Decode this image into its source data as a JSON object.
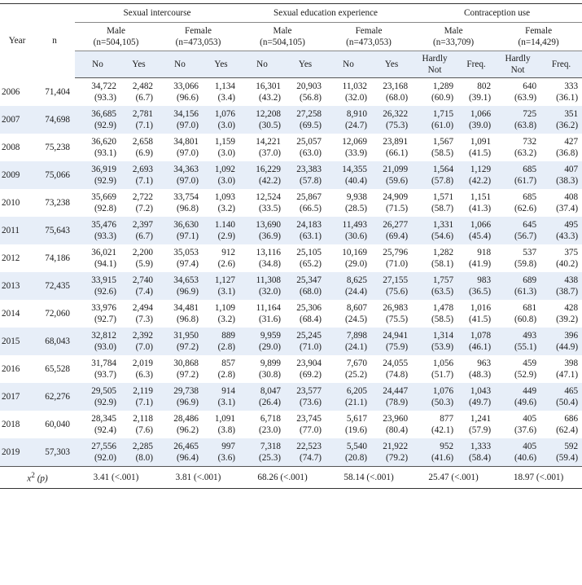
{
  "header": {
    "year": "Year",
    "n": "n",
    "groups": [
      "Sexual intercourse",
      "Sexual education experience",
      "Contraception use"
    ],
    "subgroups": [
      {
        "label": "Male",
        "n": "(n=504,105)"
      },
      {
        "label": "Female",
        "n": "(n=473,053)"
      },
      {
        "label": "Male",
        "n": "(n=504,105)"
      },
      {
        "label": "Female",
        "n": "(n=473,053)"
      },
      {
        "label": "Male",
        "n": "(n=33,709)"
      },
      {
        "label": "Female",
        "n": "(n=14,429)"
      }
    ],
    "cols": [
      {
        "a": "No",
        "b": "Yes"
      },
      {
        "a": "No",
        "b": "Yes"
      },
      {
        "a": "No",
        "b": "Yes"
      },
      {
        "a": "No",
        "b": "Yes"
      },
      {
        "a_line1": "Hardly",
        "a_line2": "Not",
        "b": "Freq."
      },
      {
        "a_line1": "Hardly",
        "a_line2": "Not",
        "b": "Freq."
      }
    ]
  },
  "rows": [
    {
      "year": "2006",
      "n": "71,404",
      "cells": [
        [
          "34,722",
          "(93.3)"
        ],
        [
          "2,482",
          "(6.7)"
        ],
        [
          "33,066",
          "(96.6)"
        ],
        [
          "1,134",
          "(3.4)"
        ],
        [
          "16,301",
          "(43.2)"
        ],
        [
          "20,903",
          "(56.8)"
        ],
        [
          "11,032",
          "(32.0)"
        ],
        [
          "23,168",
          "(68.0)"
        ],
        [
          "1,289",
          "(60.9)"
        ],
        [
          "802",
          "(39.1)"
        ],
        [
          "640",
          "(63.9)"
        ],
        [
          "333",
          "(36.1)"
        ]
      ]
    },
    {
      "year": "2007",
      "n": "74,698",
      "cells": [
        [
          "36,685",
          "(92.9)"
        ],
        [
          "2,781",
          "(7.1)"
        ],
        [
          "34,156",
          "(97.0)"
        ],
        [
          "1,076",
          "(3.0)"
        ],
        [
          "12,208",
          "(30.5)"
        ],
        [
          "27,258",
          "(69.5)"
        ],
        [
          "8,910",
          "(24.7)"
        ],
        [
          "26,322",
          "(75.3)"
        ],
        [
          "1,715",
          "(61.0)"
        ],
        [
          "1,066",
          "(39.0)"
        ],
        [
          "725",
          "(63.8)"
        ],
        [
          "351",
          "(36.2)"
        ]
      ]
    },
    {
      "year": "2008",
      "n": "75,238",
      "cells": [
        [
          "36,620",
          "(93.1)"
        ],
        [
          "2,658",
          "(6.9)"
        ],
        [
          "34,801",
          "(97.0)"
        ],
        [
          "1,159",
          "(3.0)"
        ],
        [
          "14,221",
          "(37.0)"
        ],
        [
          "25,057",
          "(63.0)"
        ],
        [
          "12,069",
          "(33.9)"
        ],
        [
          "23,891",
          "(66.1)"
        ],
        [
          "1,567",
          "(58.5)"
        ],
        [
          "1,091",
          "(41.5)"
        ],
        [
          "732",
          "(63.2)"
        ],
        [
          "427",
          "(36.8)"
        ]
      ]
    },
    {
      "year": "2009",
      "n": "75,066",
      "cells": [
        [
          "36,919",
          "(92.9)"
        ],
        [
          "2,693",
          "(7.1)"
        ],
        [
          "34,363",
          "(97.0)"
        ],
        [
          "1,092",
          "(3.0)"
        ],
        [
          "16,229",
          "(42.2)"
        ],
        [
          "23,383",
          "(57.8)"
        ],
        [
          "14,355",
          "(40.4)"
        ],
        [
          "21,099",
          "(59.6)"
        ],
        [
          "1,564",
          "(57.8)"
        ],
        [
          "1,129",
          "(42.2)"
        ],
        [
          "685",
          "(61.7)"
        ],
        [
          "407",
          "(38.3)"
        ]
      ]
    },
    {
      "year": "2010",
      "n": "73,238",
      "cells": [
        [
          "35,669",
          "(92.8)"
        ],
        [
          "2,722",
          "(7.2)"
        ],
        [
          "33,754",
          "(96.8)"
        ],
        [
          "1,093",
          "(3.2)"
        ],
        [
          "12,524",
          "(33.5)"
        ],
        [
          "25,867",
          "(66.5)"
        ],
        [
          "9,938",
          "(28.5)"
        ],
        [
          "24,909",
          "(71.5)"
        ],
        [
          "1,571",
          "(58.7)"
        ],
        [
          "1,151",
          "(41.3)"
        ],
        [
          "685",
          "(62.6)"
        ],
        [
          "408",
          "(37.4)"
        ]
      ]
    },
    {
      "year": "2011",
      "n": "75,643",
      "cells": [
        [
          "35,476",
          "(93.3)"
        ],
        [
          "2,397",
          "(6.7)"
        ],
        [
          "36,630",
          "(97.1)"
        ],
        [
          "1.140",
          "(2.9)"
        ],
        [
          "13,690",
          "(36.9)"
        ],
        [
          "24,183",
          "(63.1)"
        ],
        [
          "11,493",
          "(30.6)"
        ],
        [
          "26,277",
          "(69.4)"
        ],
        [
          "1,331",
          "(54.6)"
        ],
        [
          "1,066",
          "(45.4)"
        ],
        [
          "645",
          "(56.7)"
        ],
        [
          "495",
          "(43.3)"
        ]
      ]
    },
    {
      "year": "2012",
      "n": "74,186",
      "cells": [
        [
          "36,021",
          "(94.1)"
        ],
        [
          "2,200",
          "(5.9)"
        ],
        [
          "35,053",
          "(97.4)"
        ],
        [
          "912",
          "(2.6)"
        ],
        [
          "13,116",
          "(34.8)"
        ],
        [
          "25,105",
          "(65.2)"
        ],
        [
          "10,169",
          "(29.0)"
        ],
        [
          "25,796",
          "(71.0)"
        ],
        [
          "1,282",
          "(58.1)"
        ],
        [
          "918",
          "(41.9)"
        ],
        [
          "537",
          "(59.8)"
        ],
        [
          "375",
          "(40.2)"
        ]
      ]
    },
    {
      "year": "2013",
      "n": "72,435",
      "cells": [
        [
          "33,915",
          "(92.6)"
        ],
        [
          "2,740",
          "(7.4)"
        ],
        [
          "34,653",
          "(96.9)"
        ],
        [
          "1,127",
          "(3.1)"
        ],
        [
          "11,308",
          "(32.0)"
        ],
        [
          "25,347",
          "(68.0)"
        ],
        [
          "8,625",
          "(24.4)"
        ],
        [
          "27,155",
          "(75.6)"
        ],
        [
          "1,757",
          "(63.5)"
        ],
        [
          "983",
          "(36.5)"
        ],
        [
          "689",
          "(61.3)"
        ],
        [
          "438",
          "(38.7)"
        ]
      ]
    },
    {
      "year": "2014",
      "n": "72,060",
      "cells": [
        [
          "33,976",
          "(92.7)"
        ],
        [
          "2,494",
          "(7.3)"
        ],
        [
          "34,481",
          "(96.8)"
        ],
        [
          "1,109",
          "(3.2)"
        ],
        [
          "11,164",
          "(31.6)"
        ],
        [
          "25,306",
          "(68.4)"
        ],
        [
          "8,607",
          "(24.5)"
        ],
        [
          "26,983",
          "(75.5)"
        ],
        [
          "1,478",
          "(58.5)"
        ],
        [
          "1,016",
          "(41.5)"
        ],
        [
          "681",
          "(60.8)"
        ],
        [
          "428",
          "(39.2)"
        ]
      ]
    },
    {
      "year": "2015",
      "n": "68,043",
      "cells": [
        [
          "32,812",
          "(93.0)"
        ],
        [
          "2,392",
          "(7.0)"
        ],
        [
          "31,950",
          "(97.2)"
        ],
        [
          "889",
          "(2.8)"
        ],
        [
          "9,959",
          "(29.0)"
        ],
        [
          "25,245",
          "(71.0)"
        ],
        [
          "7,898",
          "(24.1)"
        ],
        [
          "24,941",
          "(75.9)"
        ],
        [
          "1,314",
          "(53.9)"
        ],
        [
          "1,078",
          "(46.1)"
        ],
        [
          "493",
          "(55.1)"
        ],
        [
          "396",
          "(44.9)"
        ]
      ]
    },
    {
      "year": "2016",
      "n": "65,528",
      "cells": [
        [
          "31,784",
          "(93.7)"
        ],
        [
          "2,019",
          "(6.3)"
        ],
        [
          "30,868",
          "(97.2)"
        ],
        [
          "857",
          "(2.8)"
        ],
        [
          "9,899",
          "(30.8)"
        ],
        [
          "23,904",
          "(69.2)"
        ],
        [
          "7,670",
          "(25.2)"
        ],
        [
          "24,055",
          "(74.8)"
        ],
        [
          "1,056",
          "(51.7)"
        ],
        [
          "963",
          "(48.3)"
        ],
        [
          "459",
          "(52.9)"
        ],
        [
          "398",
          "(47.1)"
        ]
      ]
    },
    {
      "year": "2017",
      "n": "62,276",
      "cells": [
        [
          "29,505",
          "(92.9)"
        ],
        [
          "2,119",
          "(7.1)"
        ],
        [
          "29,738",
          "(96.9)"
        ],
        [
          "914",
          "(3.1)"
        ],
        [
          "8,047",
          "(26.4)"
        ],
        [
          "23,577",
          "(73.6)"
        ],
        [
          "6,205",
          "(21.1)"
        ],
        [
          "24,447",
          "(78.9)"
        ],
        [
          "1,076",
          "(50.3)"
        ],
        [
          "1,043",
          "(49.7)"
        ],
        [
          "449",
          "(49.6)"
        ],
        [
          "465",
          "(50.4)"
        ]
      ]
    },
    {
      "year": "2018",
      "n": "60,040",
      "cells": [
        [
          "28,345",
          "(92.4)"
        ],
        [
          "2,118",
          "(7.6)"
        ],
        [
          "28,486",
          "(96.2)"
        ],
        [
          "1,091",
          "(3.8)"
        ],
        [
          "6,718",
          "(23.0)"
        ],
        [
          "23,745",
          "(77.0)"
        ],
        [
          "5,617",
          "(19.6)"
        ],
        [
          "23,960",
          "(80.4)"
        ],
        [
          "877",
          "(42.1)"
        ],
        [
          "1,241",
          "(57.9)"
        ],
        [
          "405",
          "(37.6)"
        ],
        [
          "686",
          "(62.4)"
        ]
      ]
    },
    {
      "year": "2019",
      "n": "57,303",
      "cells": [
        [
          "27,556",
          "(92.0)"
        ],
        [
          "2,285",
          "(8.0)"
        ],
        [
          "26,465",
          "(96.4)"
        ],
        [
          "997",
          "(3.6)"
        ],
        [
          "7,318",
          "(25.3)"
        ],
        [
          "22,523",
          "(74.7)"
        ],
        [
          "5,540",
          "(20.8)"
        ],
        [
          "21,922",
          "(79.2)"
        ],
        [
          "952",
          "(41.6)"
        ],
        [
          "1,333",
          "(58.4)"
        ],
        [
          "405",
          "(40.6)"
        ],
        [
          "592",
          "(59.4)"
        ]
      ]
    }
  ],
  "chi": {
    "label": "x",
    "sup": "2",
    "p": " (p)",
    "values": [
      "3.41 (<.001)",
      "3.81 (<.001)",
      "68.26 (<.001)",
      "58.14 (<.001)",
      "25.47 (<.001)",
      "18.97 (<.001)"
    ]
  }
}
